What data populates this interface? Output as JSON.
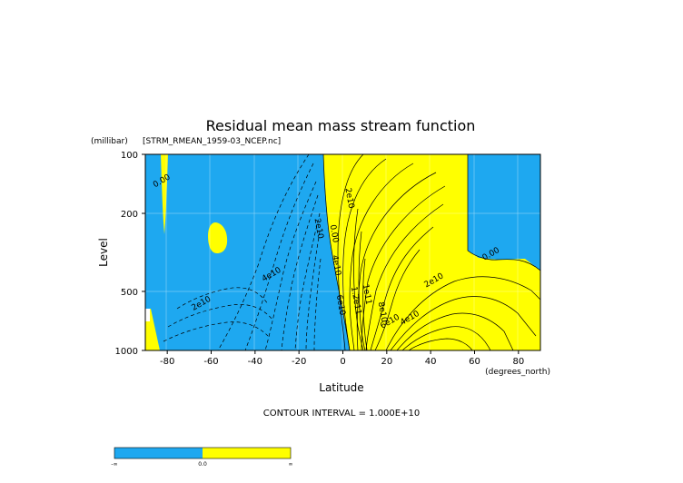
{
  "chart_data": {
    "type": "contour",
    "title": "Residual mean mass stream function",
    "subtitle": "[STRM_RMEAN_1959-03_NCEP.nc]",
    "xlabel": "Latitude",
    "xunits": "(degrees_north)",
    "ylabel": "Level",
    "yunits": "(millibar)",
    "xlim": [
      -90,
      90
    ],
    "ylim": [
      1000,
      100
    ],
    "yscale": "log",
    "x_ticks": [
      -80,
      -60,
      -40,
      -20,
      0,
      20,
      40,
      60,
      80
    ],
    "y_ticks": [
      100,
      200,
      500,
      1000
    ],
    "contour_interval_text": "CONTOUR INTERVAL = 1.000E+10",
    "fill_colors": {
      "negative": "#1ea8f0",
      "positive": "#ffff00"
    },
    "contour_labels": [
      {
        "text": "0.00",
        "lat": -82,
        "lev": 140
      },
      {
        "text": "0.00",
        "lat": -5,
        "lev": 255
      },
      {
        "text": "0.00",
        "lat": 68,
        "lev": 330
      },
      {
        "text": "2e10",
        "lat": -64,
        "lev": 590
      },
      {
        "text": "4e10",
        "lat": -32,
        "lev": 420
      },
      {
        "text": "2e10",
        "lat": -12,
        "lev": 240
      },
      {
        "text": "2e10",
        "lat": 2,
        "lev": 168
      },
      {
        "text": "4e10",
        "lat": -4,
        "lev": 370
      },
      {
        "text": "6e10",
        "lat": -2,
        "lev": 590
      },
      {
        "text": "1e11",
        "lat": 10,
        "lev": 520
      },
      {
        "text": "1.2e11",
        "lat": 5,
        "lev": 560
      },
      {
        "text": "8e10",
        "lat": 17,
        "lev": 640
      },
      {
        "text": "6e10",
        "lat": 22,
        "lev": 730
      },
      {
        "text": "4e10",
        "lat": 31,
        "lev": 700
      },
      {
        "text": "2e10",
        "lat": 42,
        "lev": 450
      }
    ],
    "colorbar": {
      "labels": [
        "-∞",
        "0.0",
        "∞"
      ]
    }
  }
}
